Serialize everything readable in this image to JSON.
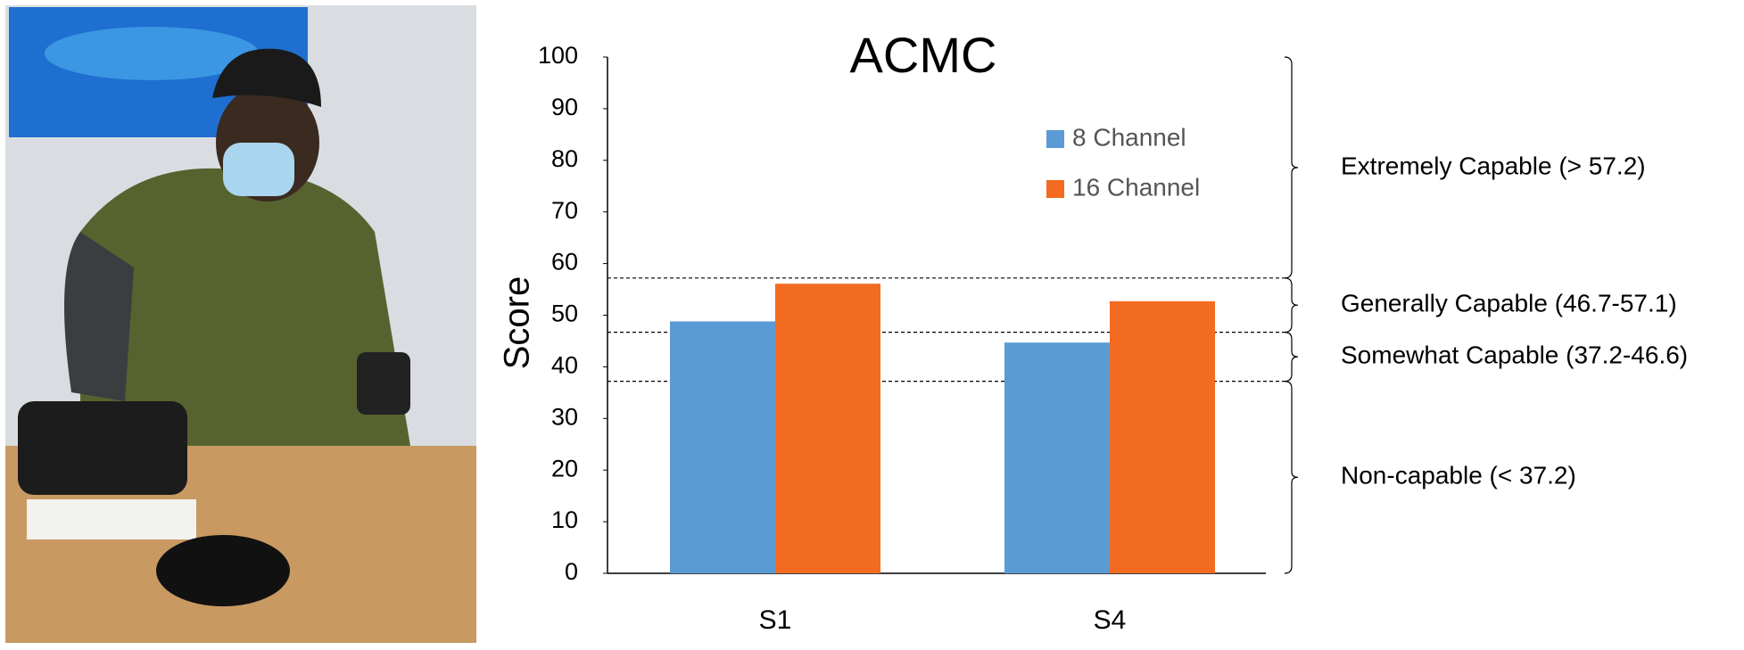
{
  "chart_data": {
    "type": "bar",
    "title": "ACMC",
    "y_label": "Score",
    "categories": [
      "S1",
      "S4"
    ],
    "series": [
      {
        "name": "8 Channel",
        "color": "#5b9bd5",
        "values": [
          48.8,
          44.7
        ]
      },
      {
        "name": "16 Channel",
        "color": "#f26b21",
        "values": [
          56.1,
          52.7
        ]
      }
    ],
    "ylim": [
      0,
      100
    ],
    "yticks": [
      0,
      10,
      20,
      30,
      40,
      50,
      60,
      70,
      80,
      90,
      100
    ],
    "thresholds": [
      57.2,
      46.7,
      37.2
    ],
    "bands": [
      {
        "label": "Extremely Capable (> 57.2)",
        "from": 57.2,
        "to": 100
      },
      {
        "label": "Generally Capable (46.7-57.1)",
        "from": 46.7,
        "to": 57.2
      },
      {
        "label": "Somewhat Capable (37.2-46.6)",
        "from": 37.2,
        "to": 46.7
      },
      {
        "label": "Non-capable (< 37.2)",
        "from": 0,
        "to": 37.2
      }
    ]
  }
}
